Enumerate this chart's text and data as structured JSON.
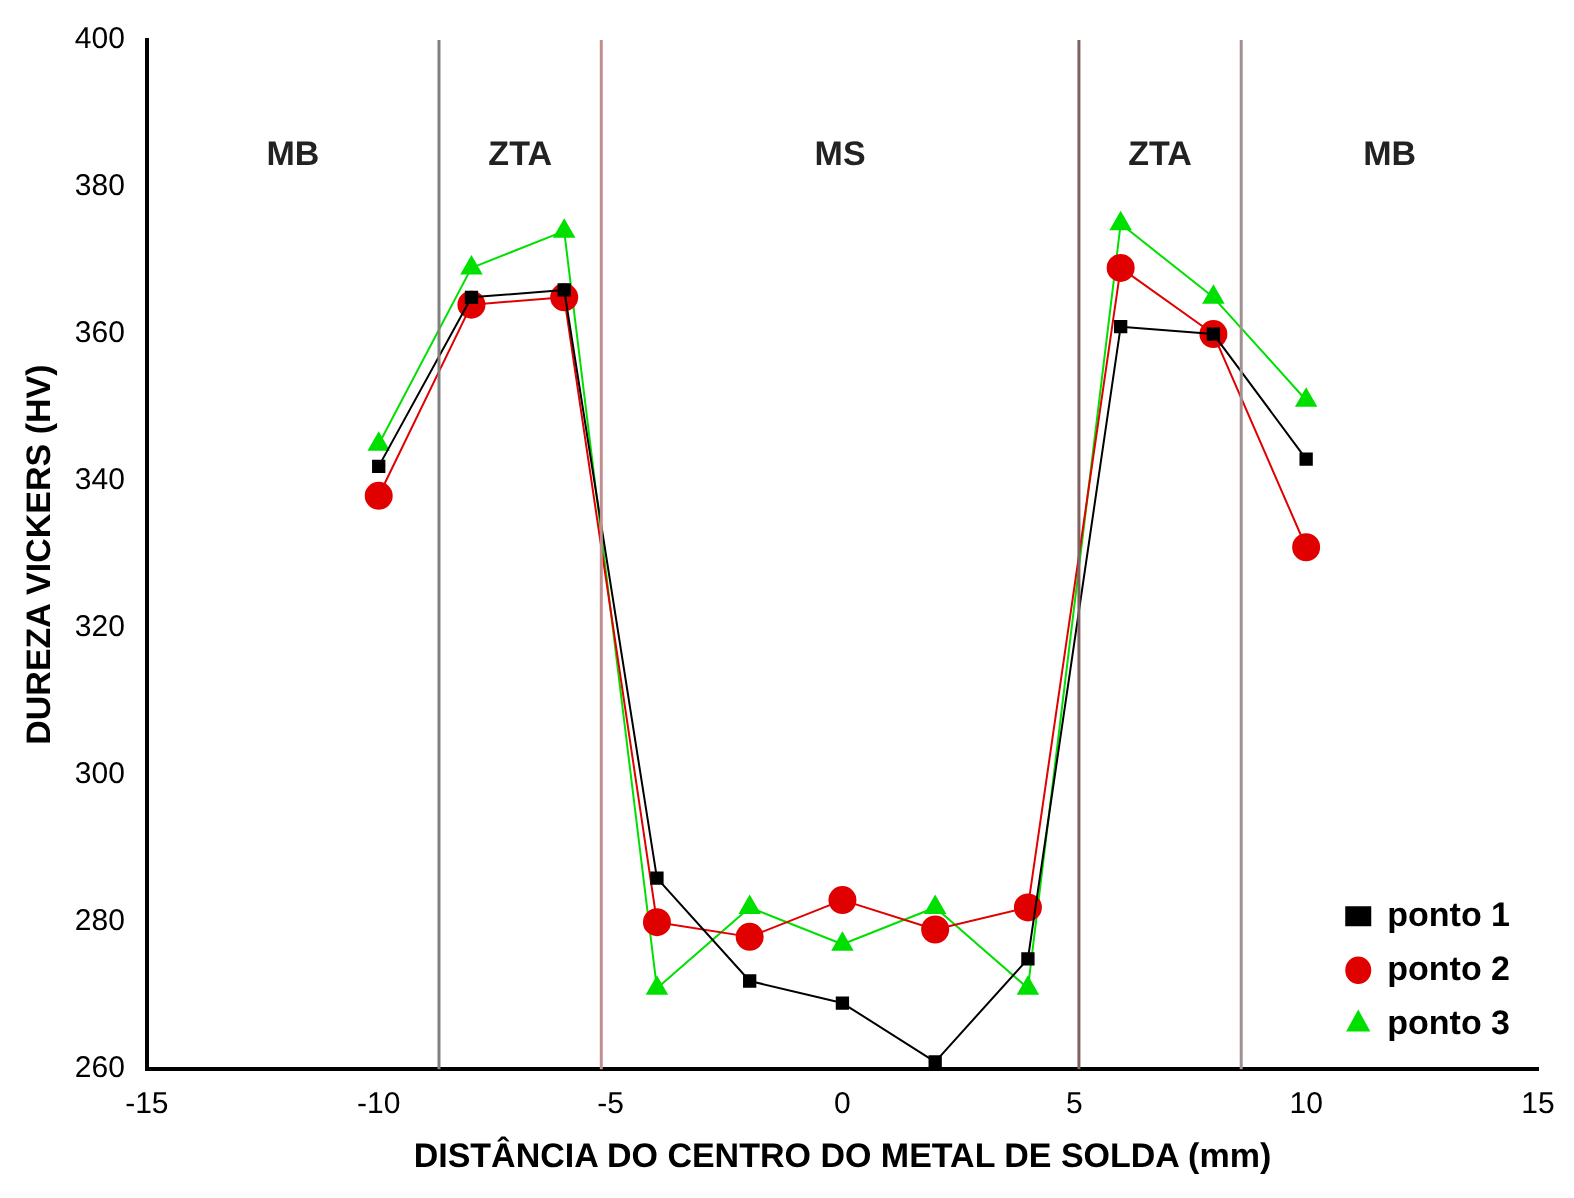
{
  "chart_data": {
    "type": "line",
    "xlabel": "DISTÂNCIA DO CENTRO DO METAL DE SOLDA (mm)",
    "ylabel": "DUREZA VICKERS (HV)",
    "x": [
      -10,
      -8,
      -6,
      -4,
      -2,
      0,
      2,
      4,
      6,
      8,
      10
    ],
    "series": [
      {
        "name": "ponto 1",
        "color": "#000000",
        "marker": "square",
        "values": [
          342,
          365,
          366,
          286,
          272,
          269,
          261,
          275,
          361,
          360,
          343
        ]
      },
      {
        "name": "ponto 2",
        "color": "#e00000",
        "marker": "circle",
        "values": [
          338,
          364,
          365,
          280,
          278,
          283,
          279,
          282,
          369,
          360,
          331
        ]
      },
      {
        "name": "ponto 3",
        "color": "#00e000",
        "marker": "triangle",
        "values": [
          345,
          369,
          374,
          271,
          282,
          277,
          282,
          271,
          375,
          365,
          351
        ]
      }
    ],
    "xlim": [
      -15,
      15
    ],
    "xticks": [
      -15,
      -10,
      -5,
      0,
      5,
      10,
      15
    ],
    "ylim": [
      260,
      400
    ],
    "yticks": [
      260,
      280,
      300,
      320,
      340,
      360,
      380,
      400
    ],
    "ref_lines": [
      {
        "axis": "x",
        "value": -8.7,
        "color": "#808080"
      },
      {
        "axis": "x",
        "value": -5.2,
        "color": "#c09090"
      },
      {
        "axis": "x",
        "value": 5.1,
        "color": "#806060"
      },
      {
        "axis": "x",
        "value": 8.6,
        "color": "#a09090"
      }
    ],
    "annotations": [
      "MB",
      "ZTA",
      "MS",
      "ZTA",
      "MB"
    ],
    "grid": false,
    "legend": "bottom right",
    "line_style": "solid"
  }
}
